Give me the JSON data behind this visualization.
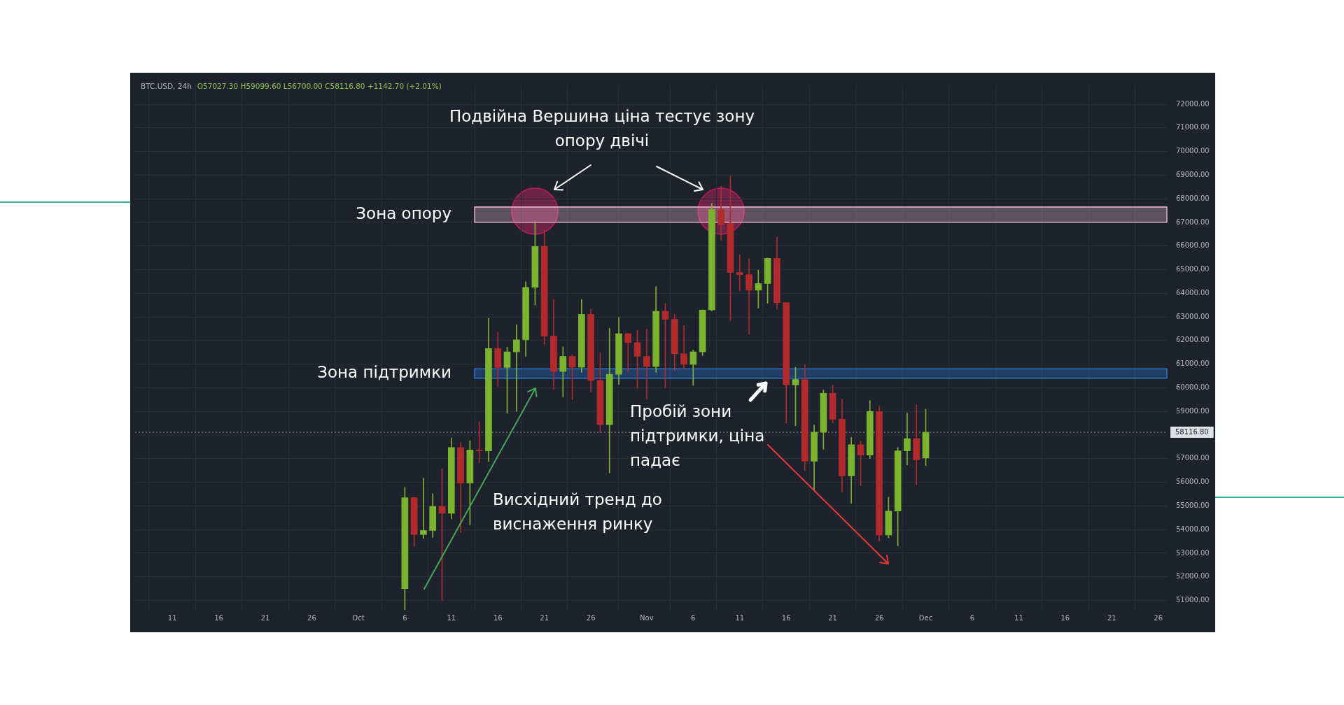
{
  "chart_data": {
    "type": "candlestick",
    "title": "BTC.USD, 24h",
    "subtitle": "O57027.30 H59099.60 L56700.00 C58116.80 +1142.70 (+2.01%)",
    "annotations": [
      "Подвійна Вершина ціна тестує зону опору двічі",
      "Пробій зони підтримки, ціна падає",
      "Висхідний тренд до виснаження ринку"
    ],
    "x": [
      "--10-06",
      "--10-07",
      "--10-08",
      "--10-09",
      "--10-10",
      "--10-11",
      "--10-12",
      "--10-13",
      "--10-14",
      "--10-15",
      "--10-16",
      "--10-17",
      "--10-18",
      "--10-19",
      "--10-20",
      "--10-21",
      "--10-22",
      "--10-23",
      "--10-24",
      "--10-25",
      "--10-26",
      "--10-27",
      "--10-28",
      "--10-29",
      "--10-30",
      "--10-31",
      "--11-01",
      "--11-02",
      "--11-03",
      "--11-04",
      "--11-05",
      "--11-06",
      "--11-07",
      "--11-08",
      "--11-09",
      "--11-10",
      "--11-11",
      "--11-12",
      "--11-13",
      "--11-14",
      "--11-15",
      "--11-16",
      "--11-17",
      "--11-18",
      "--11-19",
      "--11-20",
      "--11-21",
      "--11-22",
      "--11-23",
      "--11-24",
      "--11-25",
      "--11-26",
      "--11-27",
      "--11-28",
      "--11-29",
      "--11-30",
      "--12-01"
    ],
    "ohlc": [
      [
        51500,
        55790,
        50600,
        55350
      ],
      [
        55350,
        55370,
        53280,
        53790
      ],
      [
        53790,
        56180,
        53620,
        53960
      ],
      [
        53960,
        55520,
        53670,
        54980
      ],
      [
        54980,
        56570,
        51000,
        54690
      ],
      [
        54690,
        57880,
        54450,
        57470
      ],
      [
        57470,
        57690,
        53890,
        55970
      ],
      [
        55970,
        57760,
        54200,
        57370
      ],
      [
        57370,
        58560,
        56830,
        57330
      ],
      [
        57330,
        62940,
        56880,
        61660
      ],
      [
        61660,
        62360,
        60060,
        60860
      ],
      [
        60860,
        61720,
        58920,
        61520
      ],
      [
        61520,
        62670,
        59000,
        62030
      ],
      [
        62030,
        64490,
        61330,
        64250
      ],
      [
        64250,
        66970,
        63500,
        65980
      ],
      [
        65980,
        66670,
        61840,
        62190
      ],
      [
        62190,
        63730,
        59930,
        60690
      ],
      [
        60690,
        61730,
        59610,
        61330
      ],
      [
        61330,
        61390,
        59510,
        60870
      ],
      [
        60870,
        63730,
        60660,
        63110
      ],
      [
        63110,
        63320,
        59820,
        60310
      ],
      [
        60310,
        61490,
        58100,
        58440
      ],
      [
        58440,
        62510,
        56400,
        60570
      ],
      [
        60570,
        62980,
        60140,
        62290
      ],
      [
        62290,
        62300,
        60660,
        61910
      ],
      [
        61910,
        62430,
        59980,
        61330
      ],
      [
        61330,
        62480,
        59510,
        60900
      ],
      [
        60900,
        64290,
        60660,
        63240
      ],
      [
        63240,
        63560,
        60000,
        62900
      ],
      [
        62900,
        63110,
        60710,
        61440
      ],
      [
        61440,
        62640,
        60790,
        60990
      ],
      [
        60990,
        61600,
        60100,
        61520
      ],
      [
        61520,
        63300,
        61370,
        63290
      ],
      [
        63290,
        67800,
        63260,
        67540
      ],
      [
        67540,
        68530,
        66240,
        66900
      ],
      [
        66950,
        68970,
        62850,
        64880
      ],
      [
        64880,
        65630,
        64100,
        64790
      ],
      [
        64790,
        65470,
        62270,
        64130
      ],
      [
        64130,
        64980,
        63370,
        64410
      ],
      [
        64410,
        65490,
        63580,
        65480
      ],
      [
        65480,
        66370,
        63330,
        63600
      ],
      [
        63600,
        63610,
        58510,
        60120
      ],
      [
        60120,
        60870,
        58390,
        60350
      ],
      [
        60350,
        60970,
        56500,
        56890
      ],
      [
        56890,
        58420,
        55640,
        58120
      ],
      [
        58120,
        59900,
        57400,
        59770
      ],
      [
        59770,
        60100,
        58510,
        58670
      ],
      [
        58670,
        59530,
        55590,
        56270
      ],
      [
        56270,
        57900,
        55110,
        57590
      ],
      [
        57590,
        57730,
        55860,
        57150
      ],
      [
        57150,
        59460,
        57000,
        59000
      ],
      [
        59000,
        59220,
        53500,
        53770
      ],
      [
        53770,
        55370,
        53650,
        54780
      ],
      [
        54780,
        57470,
        53310,
        57330
      ],
      [
        57330,
        58930,
        56730,
        57850
      ],
      [
        57850,
        59260,
        55890,
        56950
      ],
      [
        57027.3,
        59099.6,
        56700,
        58116.8
      ]
    ],
    "colors": [
      "#7cb32e",
      "#b22a2c",
      "#7cb32e",
      "#7cb32e",
      "#b22a2c",
      "#7cb32e",
      "#b22a2c",
      "#7cb32e",
      "#b22a2c",
      "#7cb32e",
      "#b22a2c",
      "#7cb32e",
      "#7cb32e",
      "#7cb32e",
      "#7cb32e",
      "#b22a2c",
      "#b22a2c",
      "#7cb32e",
      "#b22a2c",
      "#7cb32e",
      "#b22a2c",
      "#b22a2c",
      "#7cb32e",
      "#7cb32e",
      "#b22a2c",
      "#b22a2c",
      "#b22a2c",
      "#7cb32e",
      "#b22a2c",
      "#b22a2c",
      "#b22a2c",
      "#7cb32e",
      "#7cb32e",
      "#7cb32e",
      "#b22a2c",
      "#b22a2c",
      "#b22a2c",
      "#b22a2c",
      "#7cb32e",
      "#7cb32e",
      "#b22a2c",
      "#b22a2c",
      "#7cb32e",
      "#b22a2c",
      "#7cb32e",
      "#7cb32e",
      "#b22a2c",
      "#b22a2c",
      "#7cb32e",
      "#b22a2c",
      "#7cb32e",
      "#b22a2c",
      "#7cb32e",
      "#7cb32e",
      "#7cb32e",
      "#b22a2c",
      "#7cb32e"
    ],
    "xlim": [
      "--09-07",
      "--12-27"
    ],
    "xticks": [
      {
        "value": "--09-11",
        "label": "11"
      },
      {
        "value": "--09-16",
        "label": "16"
      },
      {
        "value": "--09-21",
        "label": "21"
      },
      {
        "value": "--09-26",
        "label": "26"
      },
      {
        "value": "--10-01",
        "label": "Oct"
      },
      {
        "value": "--10-06",
        "label": "6"
      },
      {
        "value": "--10-11",
        "label": "11"
      },
      {
        "value": "--10-16",
        "label": "16"
      },
      {
        "value": "--10-21",
        "label": "21"
      },
      {
        "value": "--10-26",
        "label": "26"
      },
      {
        "value": "--11-01",
        "label": "Nov"
      },
      {
        "value": "--11-06",
        "label": "6"
      },
      {
        "value": "--11-11",
        "label": "11"
      },
      {
        "value": "--11-16",
        "label": "16"
      },
      {
        "value": "--11-21",
        "label": "21"
      },
      {
        "value": "--11-26",
        "label": "26"
      },
      {
        "value": "--12-01",
        "label": "Dec"
      },
      {
        "value": "--12-06",
        "label": "6"
      },
      {
        "value": "--12-11",
        "label": "11"
      },
      {
        "value": "--12-16",
        "label": "16"
      },
      {
        "value": "--12-21",
        "label": "21"
      },
      {
        "value": "--12-26",
        "label": "26"
      }
    ],
    "ylim": [
      50600,
      72800
    ],
    "yticks": [
      {
        "value": 51000,
        "label": "51000.00"
      },
      {
        "value": 52000,
        "label": "52000.00"
      },
      {
        "value": 53000,
        "label": "53000.00"
      },
      {
        "value": 54000,
        "label": "54000.00"
      },
      {
        "value": 55000,
        "label": "55000.00"
      },
      {
        "value": 56000,
        "label": "56000.00"
      },
      {
        "value": 57000,
        "label": "57000.00"
      },
      {
        "value": 58000,
        "label": null
      },
      {
        "value": 59000,
        "label": "59000.00"
      },
      {
        "value": 60000,
        "label": "60000.00"
      },
      {
        "value": 61000,
        "label": "61000.00"
      },
      {
        "value": 62000,
        "label": "62000.00"
      },
      {
        "value": 63000,
        "label": "63000.00"
      },
      {
        "value": 64000,
        "label": "64000.00"
      },
      {
        "value": 65000,
        "label": "65000.00"
      },
      {
        "value": 66000,
        "label": "66000.00"
      },
      {
        "value": 67000,
        "label": "67000.00"
      },
      {
        "value": 68000,
        "label": "68000.00"
      },
      {
        "value": 69000,
        "label": "69000.00"
      },
      {
        "value": 70000,
        "label": "70000.00"
      },
      {
        "value": 71000,
        "label": "71000.00"
      },
      {
        "value": 72000,
        "label": "72000.00"
      }
    ],
    "grid": true,
    "bands": [
      {
        "axis": "y",
        "from": 67000,
        "to": 67650,
        "label": "Зона опору",
        "color": "#f4bfd3"
      },
      {
        "axis": "y",
        "from": 60400,
        "to": 60800,
        "label": "Зона підтримки",
        "color": "#2d7fe0"
      }
    ],
    "ref_lines": [
      {
        "axis": "y",
        "value": 58116.8,
        "label": "58116.80",
        "color": "#9598a1",
        "line_style": "dotted"
      }
    ]
  }
}
